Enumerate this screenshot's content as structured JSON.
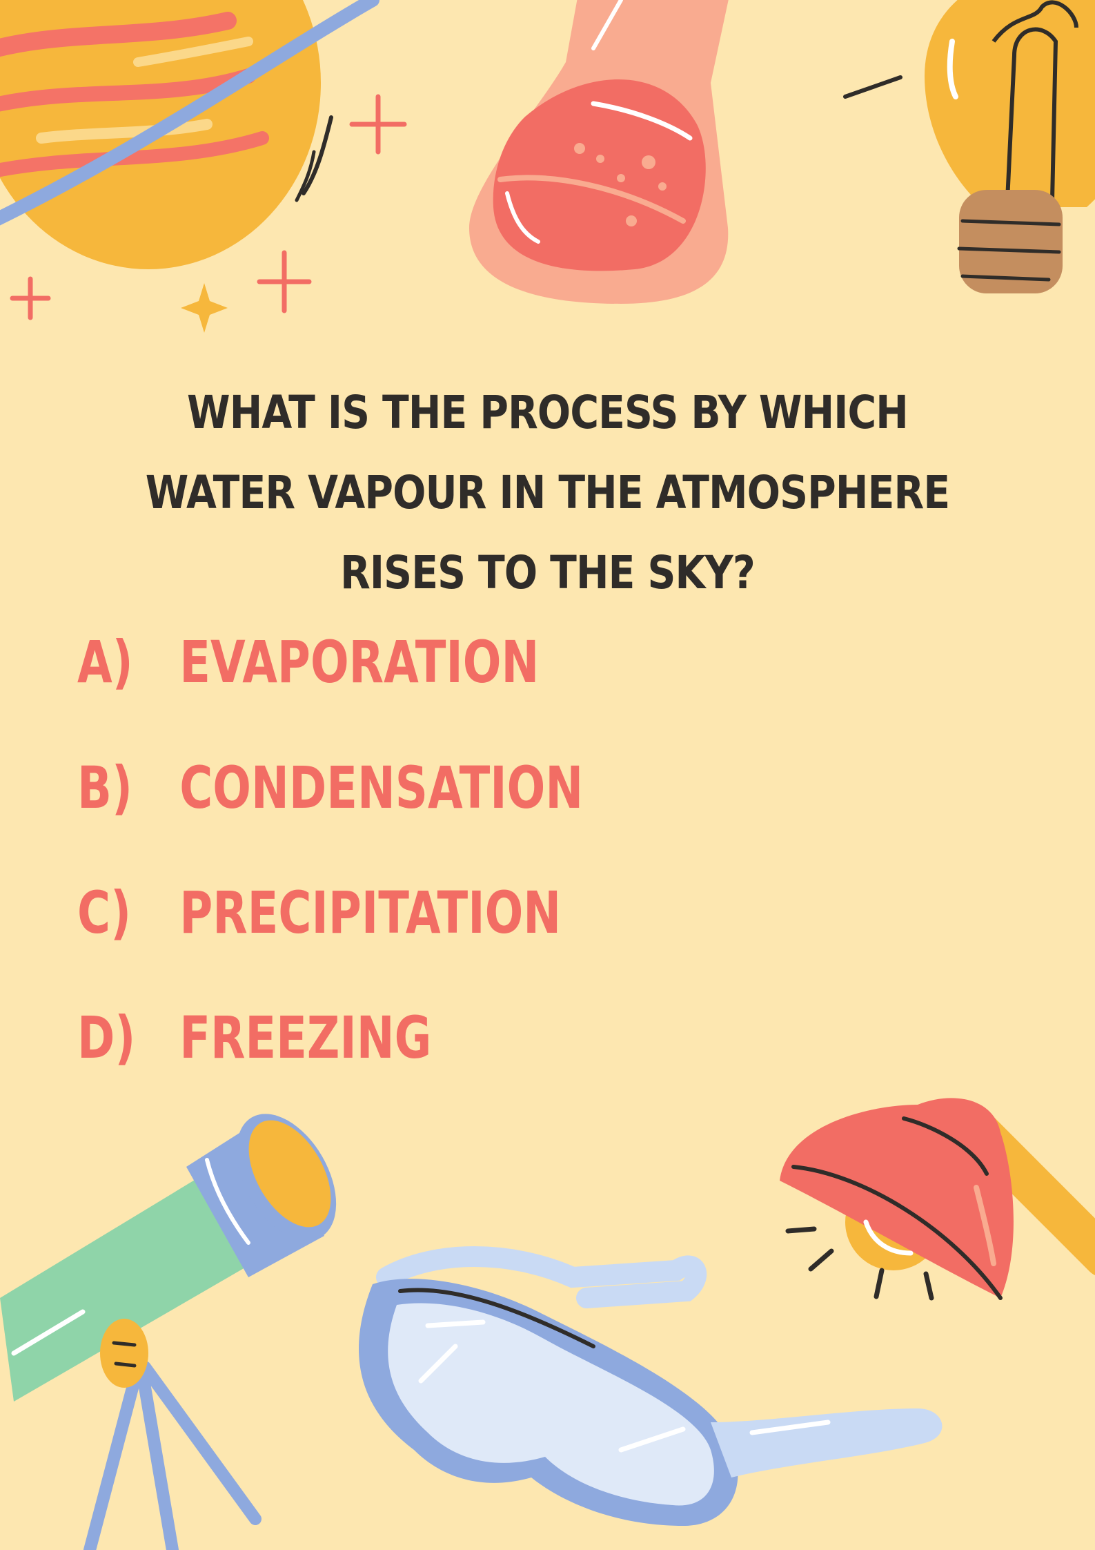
{
  "question": "WHAT IS THE PROCESS BY WHICH WATER VAPOUR IN THE ATMOSPHERE RISES TO THE SKY?",
  "options": [
    {
      "letter": "A)",
      "text": "EVAPORATION"
    },
    {
      "letter": "B)",
      "text": "CONDENSATION"
    },
    {
      "letter": "C)",
      "text": "PRECIPITATION"
    },
    {
      "letter": "D)",
      "text": "FREEZING"
    }
  ],
  "colors": {
    "background": "#fde7b0",
    "question": "#2f2c29",
    "answer": "#f26d64",
    "planet": "#f6b73c",
    "flask": "#f26d64",
    "bulb": "#f6b73c",
    "telescope": "#8fd4a9",
    "goggles": "#c9daf4",
    "lamp": "#f26d64"
  },
  "icons": [
    "planet-icon",
    "flask-icon",
    "lightbulb-icon",
    "sparkle-icon",
    "telescope-icon",
    "goggles-icon",
    "lamp-icon"
  ]
}
